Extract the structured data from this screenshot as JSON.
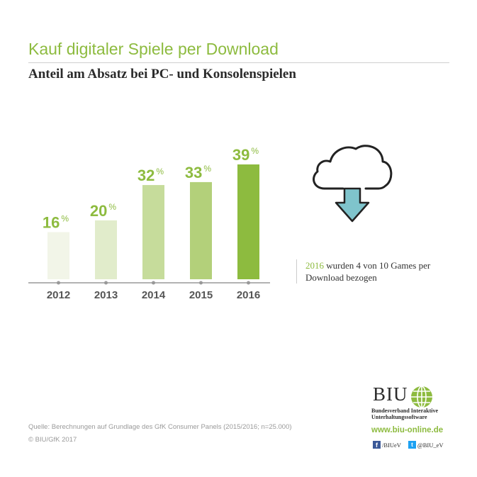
{
  "header": {
    "title": "Kauf digitaler Spiele per Download",
    "subtitle": "Anteil am Absatz bei PC- und Konsolenspielen"
  },
  "chart_data": {
    "type": "bar",
    "categories": [
      "2012",
      "2013",
      "2014",
      "2015",
      "2016"
    ],
    "values": [
      16,
      20,
      32,
      33,
      39
    ],
    "value_suffix": "%",
    "title": "Anteil am Absatz bei PC- und Konsolenspielen",
    "xlabel": "",
    "ylabel": "",
    "ylim": [
      0,
      40
    ],
    "grid": false,
    "legend": "none",
    "colors": [
      "#f2f5e8",
      "#e1eccb",
      "#c6dc9b",
      "#b3d07a",
      "#8dbb3f"
    ],
    "label_color": "#8dbb3f",
    "axis_color": "#999999"
  },
  "callout": {
    "year": "2016",
    "text": " wurden 4 von 10 Games per Download bezogen",
    "icon": "cloud-download-icon",
    "arrow_color": "#7fc4cc"
  },
  "footer": {
    "source": "Quelle: Berechnungen auf Grundlage des GfK Consumer Panels (2015/2016; n=25.000)",
    "copyright": "© BIU/GfK 2017"
  },
  "logo": {
    "name": "BIU",
    "org_line1": "Bundesverband Interaktive",
    "org_line2": "Unterhaltungssoftware",
    "url": "www.biu-online.de",
    "facebook": "/BIUeV",
    "twitter": "@BIU_eV",
    "facebook_glyph": "f",
    "twitter_glyph": "t"
  }
}
